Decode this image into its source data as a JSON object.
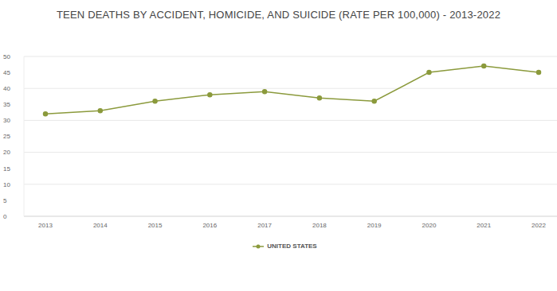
{
  "chart_data": {
    "type": "line",
    "title": "TEEN DEATHS BY ACCIDENT, HOMICIDE, AND SUICIDE (RATE PER 100,000) - 2013-2022",
    "categories": [
      "2013",
      "2014",
      "2015",
      "2016",
      "2017",
      "2018",
      "2019",
      "2020",
      "2021",
      "2022"
    ],
    "series": [
      {
        "name": "UNITED STATES",
        "color": "#8b9a3c",
        "values": [
          32,
          33,
          36,
          38,
          39,
          37,
          36,
          45,
          47,
          45
        ]
      }
    ],
    "ylim": [
      0,
      50
    ],
    "yticks": [
      0,
      5,
      10,
      15,
      20,
      25,
      30,
      35,
      40,
      45,
      50
    ],
    "grid": true,
    "legend": "bottom",
    "marker": "circle"
  }
}
